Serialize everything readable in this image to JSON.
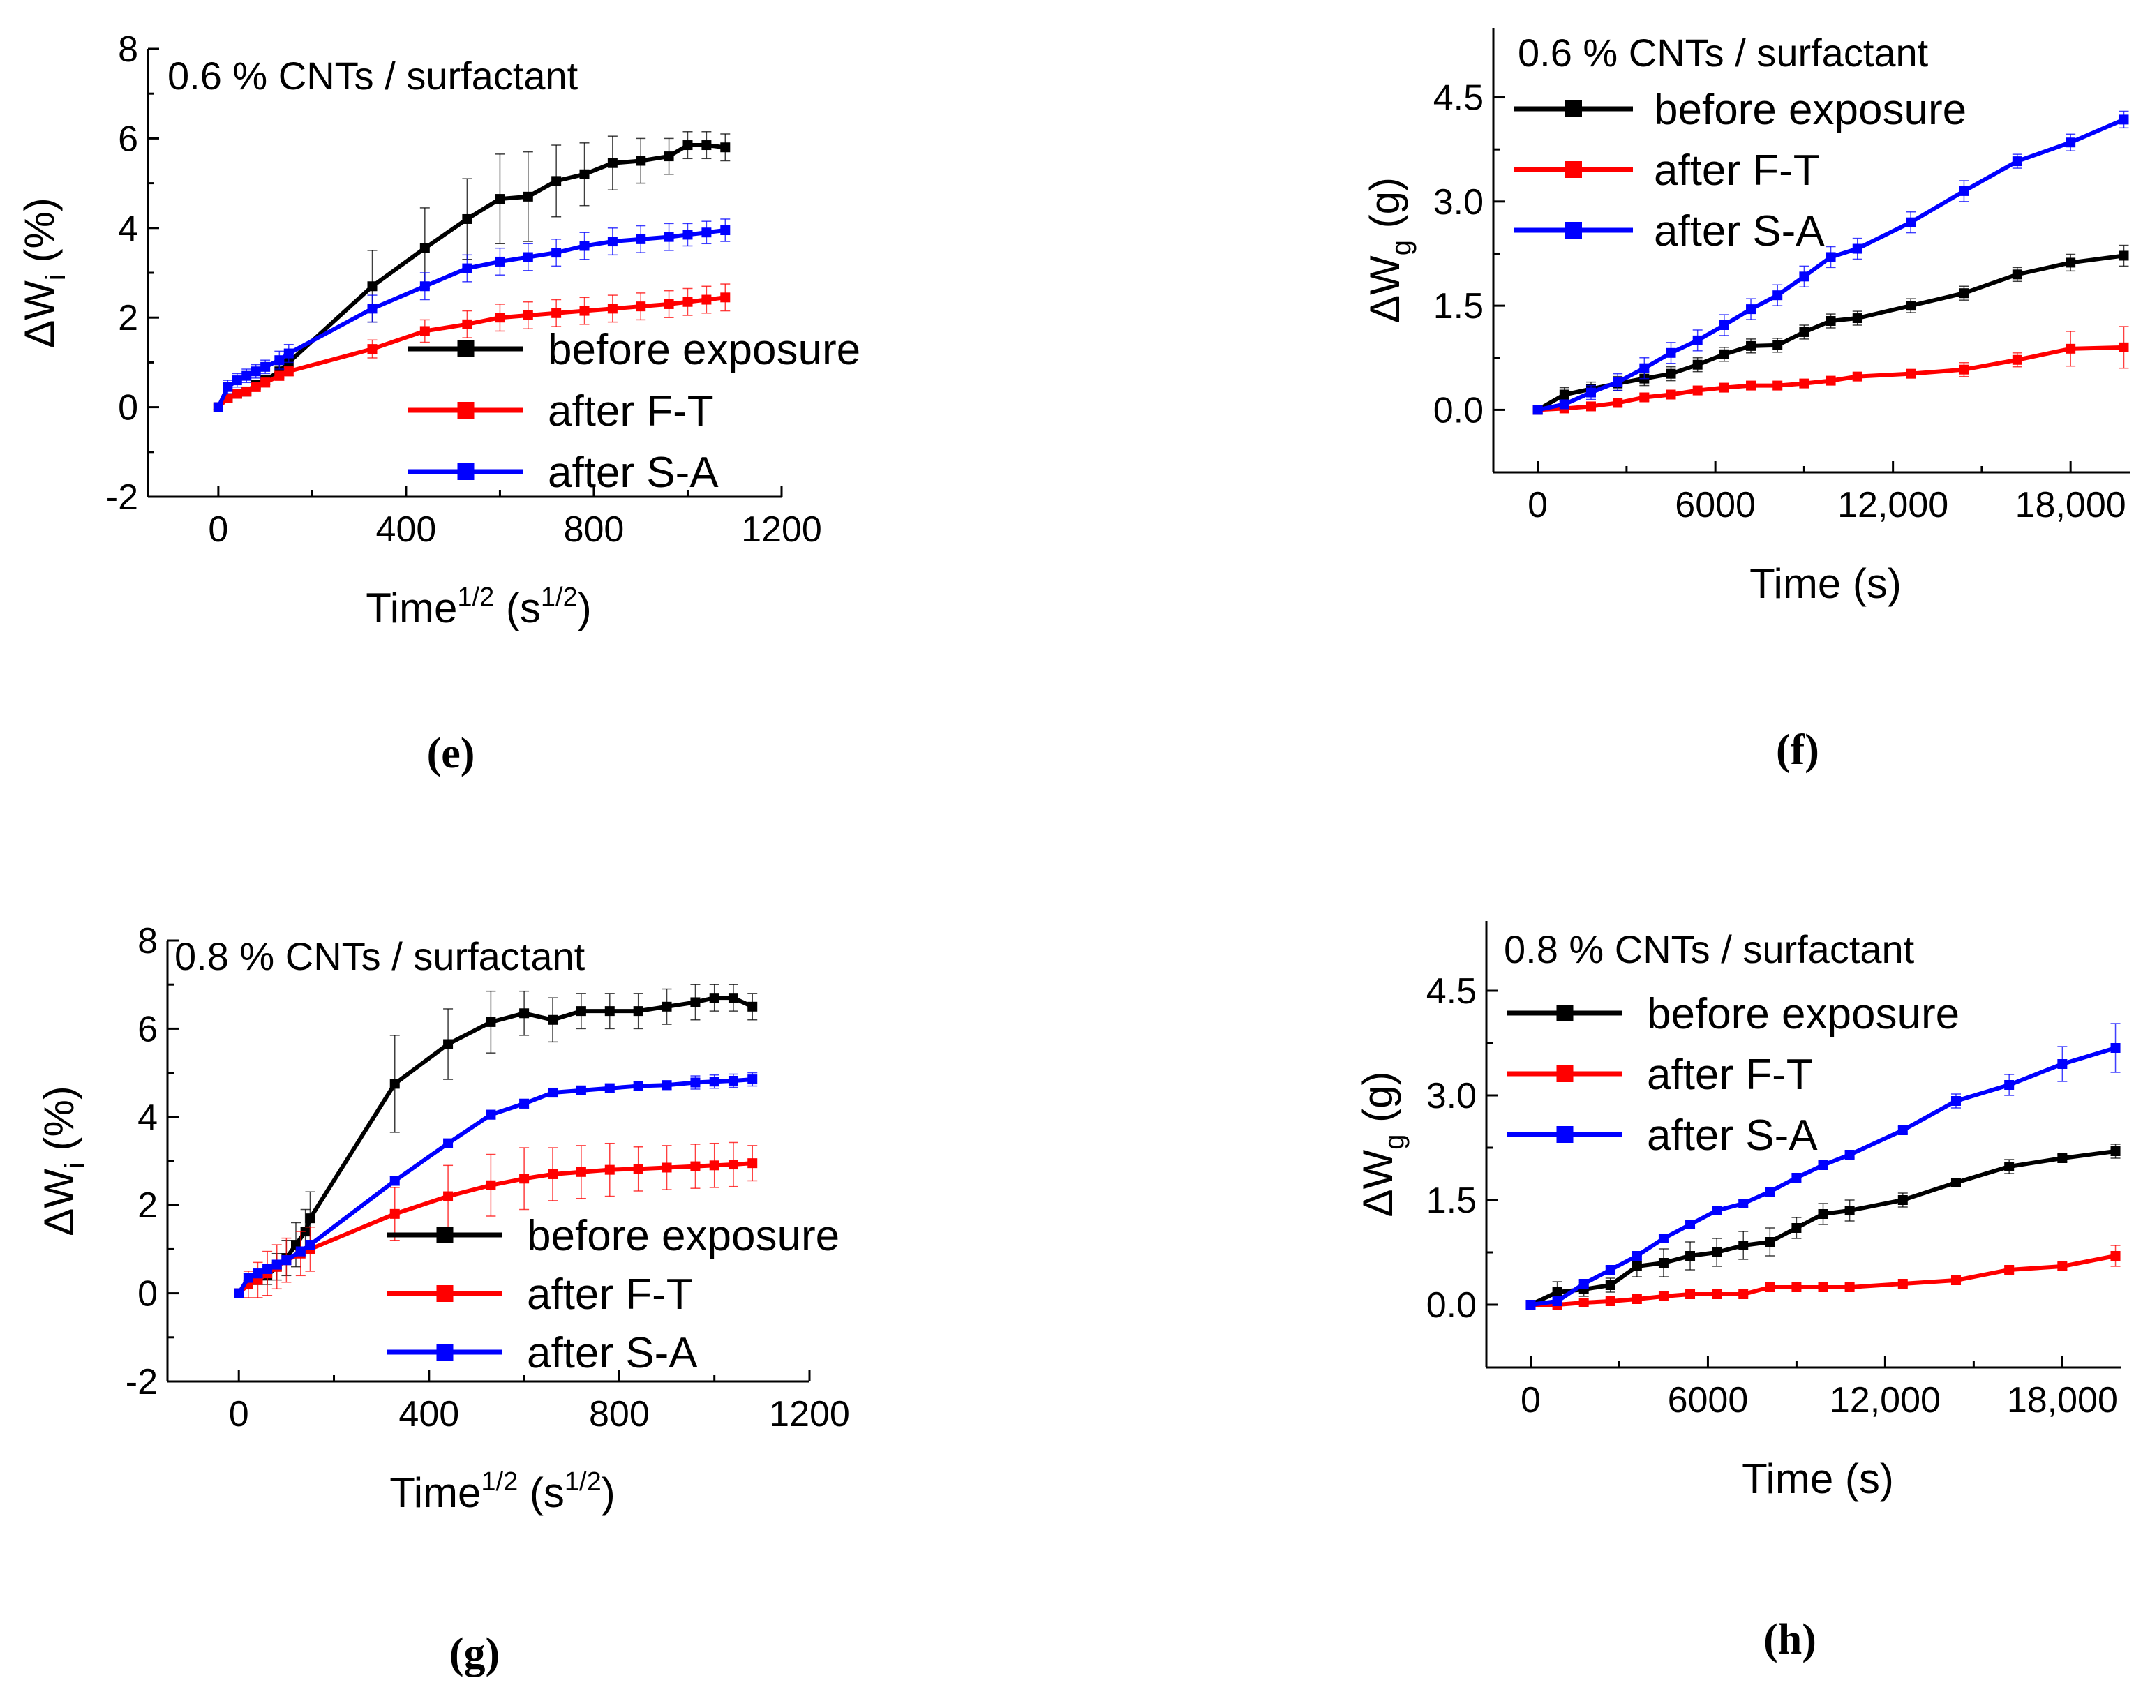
{
  "figure": {
    "legend_entries": [
      "before exposure",
      "after F-T",
      " after S-A"
    ],
    "colors": {
      "before": "#000000",
      "ft": "#ff0000",
      "sa": "#0000ff"
    }
  },
  "chart_data": [
    {
      "id": "e",
      "type": "line",
      "title": "0.6 % CNTs / surfactant",
      "caption": "(e)",
      "xlabel": "Time^1/2 (s^1/2)",
      "xlabel_parts": {
        "main": "Time",
        "sup1": "1/2",
        "mid": " (s",
        "sup2": "1/2",
        "end": ")"
      },
      "ylabel": "ΔWi (%)",
      "ylabel_parts": {
        "main": "ΔW",
        "sub": "i",
        "end": " (%)"
      },
      "xlim": [
        -150,
        1200
      ],
      "ylim": [
        -2,
        8
      ],
      "xticks": [
        0,
        400,
        800,
        1200
      ],
      "yticks": [
        -2,
        0,
        2,
        4,
        6,
        8
      ],
      "xtick_labels": [
        "0",
        "400",
        "800",
        "1200"
      ],
      "ytick_labels": [
        "-2",
        "0",
        "2",
        "4",
        "6",
        "8"
      ],
      "legend_position": "center-right",
      "series": [
        {
          "name": "before exposure",
          "color": "#000000",
          "x": [
            0,
            20,
            40,
            60,
            80,
            100,
            130,
            150,
            328,
            440,
            530,
            600,
            660,
            720,
            780,
            840,
            900,
            960,
            1000,
            1040,
            1080
          ],
          "y": [
            0,
            0.2,
            0.3,
            0.35,
            0.5,
            0.6,
            0.8,
            1.0,
            2.7,
            3.55,
            4.2,
            4.65,
            4.7,
            5.05,
            5.2,
            5.45,
            5.5,
            5.6,
            5.85,
            5.85,
            5.8
          ],
          "err": [
            0.05,
            0.1,
            0.1,
            0.1,
            0.1,
            0.1,
            0.15,
            0.2,
            0.8,
            0.9,
            0.9,
            1.0,
            1.0,
            0.8,
            0.7,
            0.6,
            0.5,
            0.4,
            0.3,
            0.3,
            0.3
          ]
        },
        {
          "name": "after F-T",
          "color": "#ff0000",
          "x": [
            0,
            20,
            40,
            60,
            80,
            100,
            130,
            150,
            328,
            440,
            530,
            600,
            660,
            720,
            780,
            840,
            900,
            960,
            1000,
            1040,
            1080
          ],
          "y": [
            0,
            0.2,
            0.3,
            0.35,
            0.45,
            0.55,
            0.7,
            0.8,
            1.3,
            1.7,
            1.85,
            2.0,
            2.05,
            2.1,
            2.15,
            2.2,
            2.25,
            2.3,
            2.35,
            2.4,
            2.45
          ],
          "err": [
            0.05,
            0.05,
            0.1,
            0.1,
            0.1,
            0.1,
            0.1,
            0.1,
            0.2,
            0.25,
            0.3,
            0.3,
            0.3,
            0.3,
            0.3,
            0.3,
            0.3,
            0.3,
            0.3,
            0.3,
            0.3
          ]
        },
        {
          "name": " after S-A",
          "color": "#0000ff",
          "x": [
            0,
            20,
            40,
            60,
            80,
            100,
            130,
            150,
            328,
            440,
            530,
            600,
            660,
            720,
            780,
            840,
            900,
            960,
            1000,
            1040,
            1080
          ],
          "y": [
            0,
            0.45,
            0.6,
            0.7,
            0.8,
            0.9,
            1.05,
            1.2,
            2.2,
            2.7,
            3.1,
            3.25,
            3.35,
            3.45,
            3.6,
            3.7,
            3.75,
            3.8,
            3.85,
            3.9,
            3.95
          ],
          "err": [
            0.05,
            0.15,
            0.15,
            0.15,
            0.15,
            0.15,
            0.2,
            0.2,
            0.3,
            0.3,
            0.3,
            0.3,
            0.3,
            0.3,
            0.3,
            0.3,
            0.3,
            0.3,
            0.25,
            0.25,
            0.25
          ]
        }
      ]
    },
    {
      "id": "f",
      "type": "line",
      "title": "0.6 % CNTs / surfactant",
      "caption": "(f)",
      "xlabel": "Time (s)",
      "ylabel": "ΔWg (g)",
      "ylabel_parts": {
        "main": "ΔW",
        "sub": "g",
        "end": " (g)"
      },
      "xlim": [
        -1500,
        20000
      ],
      "ylim": [
        -0.9,
        5.5
      ],
      "xticks": [
        0,
        6000,
        12000,
        18000
      ],
      "yticks": [
        0.0,
        1.5,
        3.0,
        4.5
      ],
      "xtick_labels": [
        "0",
        "6000",
        "12,000",
        "18,000"
      ],
      "ytick_labels": [
        "0.0",
        "1.5",
        "3.0",
        "4.5"
      ],
      "legend_position": "top-left",
      "series": [
        {
          "name": "before exposure",
          "color": "#000000",
          "x": [
            0,
            900,
            1800,
            2700,
            3600,
            4500,
            5400,
            6300,
            7200,
            8100,
            9000,
            9900,
            10800,
            12600,
            14400,
            16200,
            18000,
            19800
          ],
          "y": [
            0,
            0.22,
            0.3,
            0.38,
            0.45,
            0.52,
            0.65,
            0.8,
            0.92,
            0.93,
            1.12,
            1.28,
            1.32,
            1.5,
            1.68,
            1.95,
            2.12,
            2.22
          ],
          "err": [
            0.02,
            0.1,
            0.1,
            0.1,
            0.1,
            0.1,
            0.1,
            0.1,
            0.1,
            0.1,
            0.1,
            0.1,
            0.1,
            0.1,
            0.1,
            0.1,
            0.12,
            0.15
          ]
        },
        {
          "name": "after F-T",
          "color": "#ff0000",
          "x": [
            0,
            900,
            1800,
            2700,
            3600,
            4500,
            5400,
            6300,
            7200,
            8100,
            9000,
            9900,
            10800,
            12600,
            14400,
            16200,
            18000,
            19800
          ],
          "y": [
            0,
            0.02,
            0.05,
            0.1,
            0.18,
            0.22,
            0.28,
            0.32,
            0.35,
            0.35,
            0.38,
            0.42,
            0.48,
            0.52,
            0.58,
            0.72,
            0.88,
            0.9
          ],
          "err": [
            0.01,
            0.03,
            0.05,
            0.05,
            0.05,
            0.05,
            0.05,
            0.05,
            0.05,
            0.05,
            0.05,
            0.05,
            0.05,
            0.05,
            0.1,
            0.1,
            0.25,
            0.3
          ]
        },
        {
          "name": " after S-A",
          "color": "#0000ff",
          "x": [
            0,
            900,
            1800,
            2700,
            3600,
            4500,
            5400,
            6300,
            7200,
            8100,
            9000,
            9900,
            10800,
            12600,
            14400,
            16200,
            18000,
            19800
          ],
          "y": [
            0,
            0.08,
            0.25,
            0.4,
            0.6,
            0.82,
            1.0,
            1.22,
            1.45,
            1.65,
            1.92,
            2.2,
            2.32,
            2.7,
            3.15,
            3.58,
            3.85,
            4.18
          ],
          "err": [
            0.02,
            0.05,
            0.1,
            0.12,
            0.15,
            0.15,
            0.15,
            0.15,
            0.15,
            0.15,
            0.15,
            0.15,
            0.15,
            0.15,
            0.15,
            0.1,
            0.12,
            0.12
          ]
        }
      ]
    },
    {
      "id": "g",
      "type": "line",
      "title": "0.8 % CNTs / surfactant",
      "caption": "(g)",
      "xlabel": "Time^1/2 (s^1/2)",
      "xlabel_parts": {
        "main": "Time",
        "sup1": "1/2",
        "mid": " (s",
        "sup2": "1/2",
        "end": ")"
      },
      "ylabel": "ΔWi (%)",
      "ylabel_parts": {
        "main": "ΔW",
        "sub": "i",
        "end": " (%)"
      },
      "xlim": [
        -150,
        1200
      ],
      "ylim": [
        -2,
        8
      ],
      "xticks": [
        0,
        400,
        800,
        1200
      ],
      "yticks": [
        -2,
        0,
        2,
        4,
        6,
        8
      ],
      "xtick_labels": [
        "0",
        "400",
        "800",
        "1200"
      ],
      "ytick_labels": [
        "-2",
        "0",
        "2",
        "4",
        "6",
        "8"
      ],
      "legend_position": "center-right",
      "series": [
        {
          "name": "before exposure",
          "color": "#000000",
          "x": [
            0,
            20,
            40,
            60,
            80,
            100,
            120,
            140,
            150,
            328,
            440,
            530,
            600,
            660,
            720,
            780,
            840,
            900,
            960,
            1000,
            1040,
            1080
          ],
          "y": [
            0,
            0.2,
            0.3,
            0.4,
            0.6,
            0.8,
            1.1,
            1.4,
            1.7,
            4.75,
            5.65,
            6.15,
            6.35,
            6.2,
            6.4,
            6.4,
            6.4,
            6.5,
            6.6,
            6.7,
            6.7,
            6.5
          ],
          "err": [
            0.05,
            0.1,
            0.1,
            0.2,
            0.3,
            0.4,
            0.5,
            0.5,
            0.6,
            1.1,
            0.8,
            0.7,
            0.5,
            0.5,
            0.4,
            0.4,
            0.4,
            0.4,
            0.4,
            0.3,
            0.3,
            0.3
          ]
        },
        {
          "name": "after F-T",
          "color": "#ff0000",
          "x": [
            0,
            20,
            40,
            60,
            80,
            100,
            130,
            150,
            328,
            440,
            530,
            600,
            660,
            720,
            780,
            840,
            900,
            960,
            1000,
            1040,
            1080
          ],
          "y": [
            0,
            0.2,
            0.3,
            0.45,
            0.6,
            0.75,
            0.9,
            1.0,
            1.8,
            2.2,
            2.45,
            2.6,
            2.7,
            2.75,
            2.8,
            2.82,
            2.85,
            2.88,
            2.9,
            2.92,
            2.95
          ],
          "err": [
            0.05,
            0.3,
            0.4,
            0.5,
            0.5,
            0.5,
            0.5,
            0.5,
            0.6,
            0.7,
            0.7,
            0.7,
            0.6,
            0.6,
            0.6,
            0.5,
            0.5,
            0.5,
            0.5,
            0.5,
            0.4
          ]
        },
        {
          "name": " after S-A",
          "color": "#0000ff",
          "x": [
            0,
            20,
            40,
            60,
            80,
            100,
            130,
            150,
            328,
            440,
            530,
            600,
            660,
            720,
            780,
            840,
            900,
            960,
            1000,
            1040,
            1080
          ],
          "y": [
            0,
            0.35,
            0.45,
            0.55,
            0.65,
            0.75,
            0.95,
            1.1,
            2.55,
            3.4,
            4.05,
            4.3,
            4.55,
            4.6,
            4.65,
            4.7,
            4.72,
            4.78,
            4.8,
            4.82,
            4.85
          ],
          "err": [
            0.05,
            0.1,
            0.1,
            0.1,
            0.1,
            0.1,
            0.1,
            0.1,
            0.1,
            0.1,
            0.1,
            0.1,
            0.1,
            0.1,
            0.1,
            0.1,
            0.1,
            0.15,
            0.15,
            0.15,
            0.15
          ]
        }
      ]
    },
    {
      "id": "h",
      "type": "line",
      "title": "0.8 % CNTs / surfactant",
      "caption": "(h)",
      "xlabel": "Time (s)",
      "ylabel": "ΔWg (g)",
      "ylabel_parts": {
        "main": "ΔW",
        "sub": "g",
        "end": " (g)"
      },
      "xlim": [
        -1500,
        20000
      ],
      "ylim": [
        -0.9,
        5.5
      ],
      "xticks": [
        0,
        6000,
        12000,
        18000
      ],
      "yticks": [
        0.0,
        1.5,
        3.0,
        4.5
      ],
      "xtick_labels": [
        "0",
        "6000",
        "12,000",
        "18,000"
      ],
      "ytick_labels": [
        "0.0",
        "1.5",
        "3.0",
        "4.5"
      ],
      "legend_position": "top-left",
      "series": [
        {
          "name": "before exposure",
          "color": "#000000",
          "x": [
            0,
            900,
            1800,
            2700,
            3600,
            4500,
            5400,
            6300,
            7200,
            8100,
            9000,
            9900,
            10800,
            12600,
            14400,
            16200,
            18000,
            19800
          ],
          "y": [
            0,
            0.18,
            0.22,
            0.28,
            0.55,
            0.6,
            0.7,
            0.75,
            0.85,
            0.9,
            1.1,
            1.3,
            1.35,
            1.5,
            1.75,
            1.98,
            2.1,
            2.2
          ],
          "err": [
            0.02,
            0.15,
            0.1,
            0.1,
            0.15,
            0.2,
            0.2,
            0.2,
            0.2,
            0.2,
            0.15,
            0.15,
            0.15,
            0.1,
            0.05,
            0.1,
            0.05,
            0.1
          ]
        },
        {
          "name": "after F-T",
          "color": "#ff0000",
          "x": [
            0,
            900,
            1800,
            2700,
            3600,
            4500,
            5400,
            6300,
            7200,
            8100,
            9000,
            9900,
            10800,
            12600,
            14400,
            16200,
            18000,
            19800
          ],
          "y": [
            0,
            0.0,
            0.03,
            0.05,
            0.08,
            0.12,
            0.15,
            0.15,
            0.15,
            0.25,
            0.25,
            0.25,
            0.25,
            0.3,
            0.35,
            0.5,
            0.55,
            0.7
          ],
          "err": [
            0.01,
            0.02,
            0.03,
            0.03,
            0.03,
            0.03,
            0.03,
            0.03,
            0.03,
            0.03,
            0.03,
            0.03,
            0.03,
            0.03,
            0.03,
            0.05,
            0.05,
            0.15
          ]
        },
        {
          "name": " after S-A",
          "color": "#0000ff",
          "x": [
            0,
            900,
            1800,
            2700,
            3600,
            4500,
            5400,
            6300,
            7200,
            8100,
            9000,
            9900,
            10800,
            12600,
            14400,
            16200,
            18000,
            19800
          ],
          "y": [
            0,
            0.05,
            0.3,
            0.5,
            0.7,
            0.95,
            1.15,
            1.35,
            1.45,
            1.62,
            1.82,
            2.0,
            2.15,
            2.5,
            2.92,
            3.15,
            3.45,
            3.68
          ],
          "err": [
            0.02,
            0.05,
            0.05,
            0.05,
            0.05,
            0.05,
            0.05,
            0.05,
            0.05,
            0.05,
            0.05,
            0.05,
            0.05,
            0.05,
            0.1,
            0.15,
            0.25,
            0.35
          ]
        }
      ]
    }
  ]
}
